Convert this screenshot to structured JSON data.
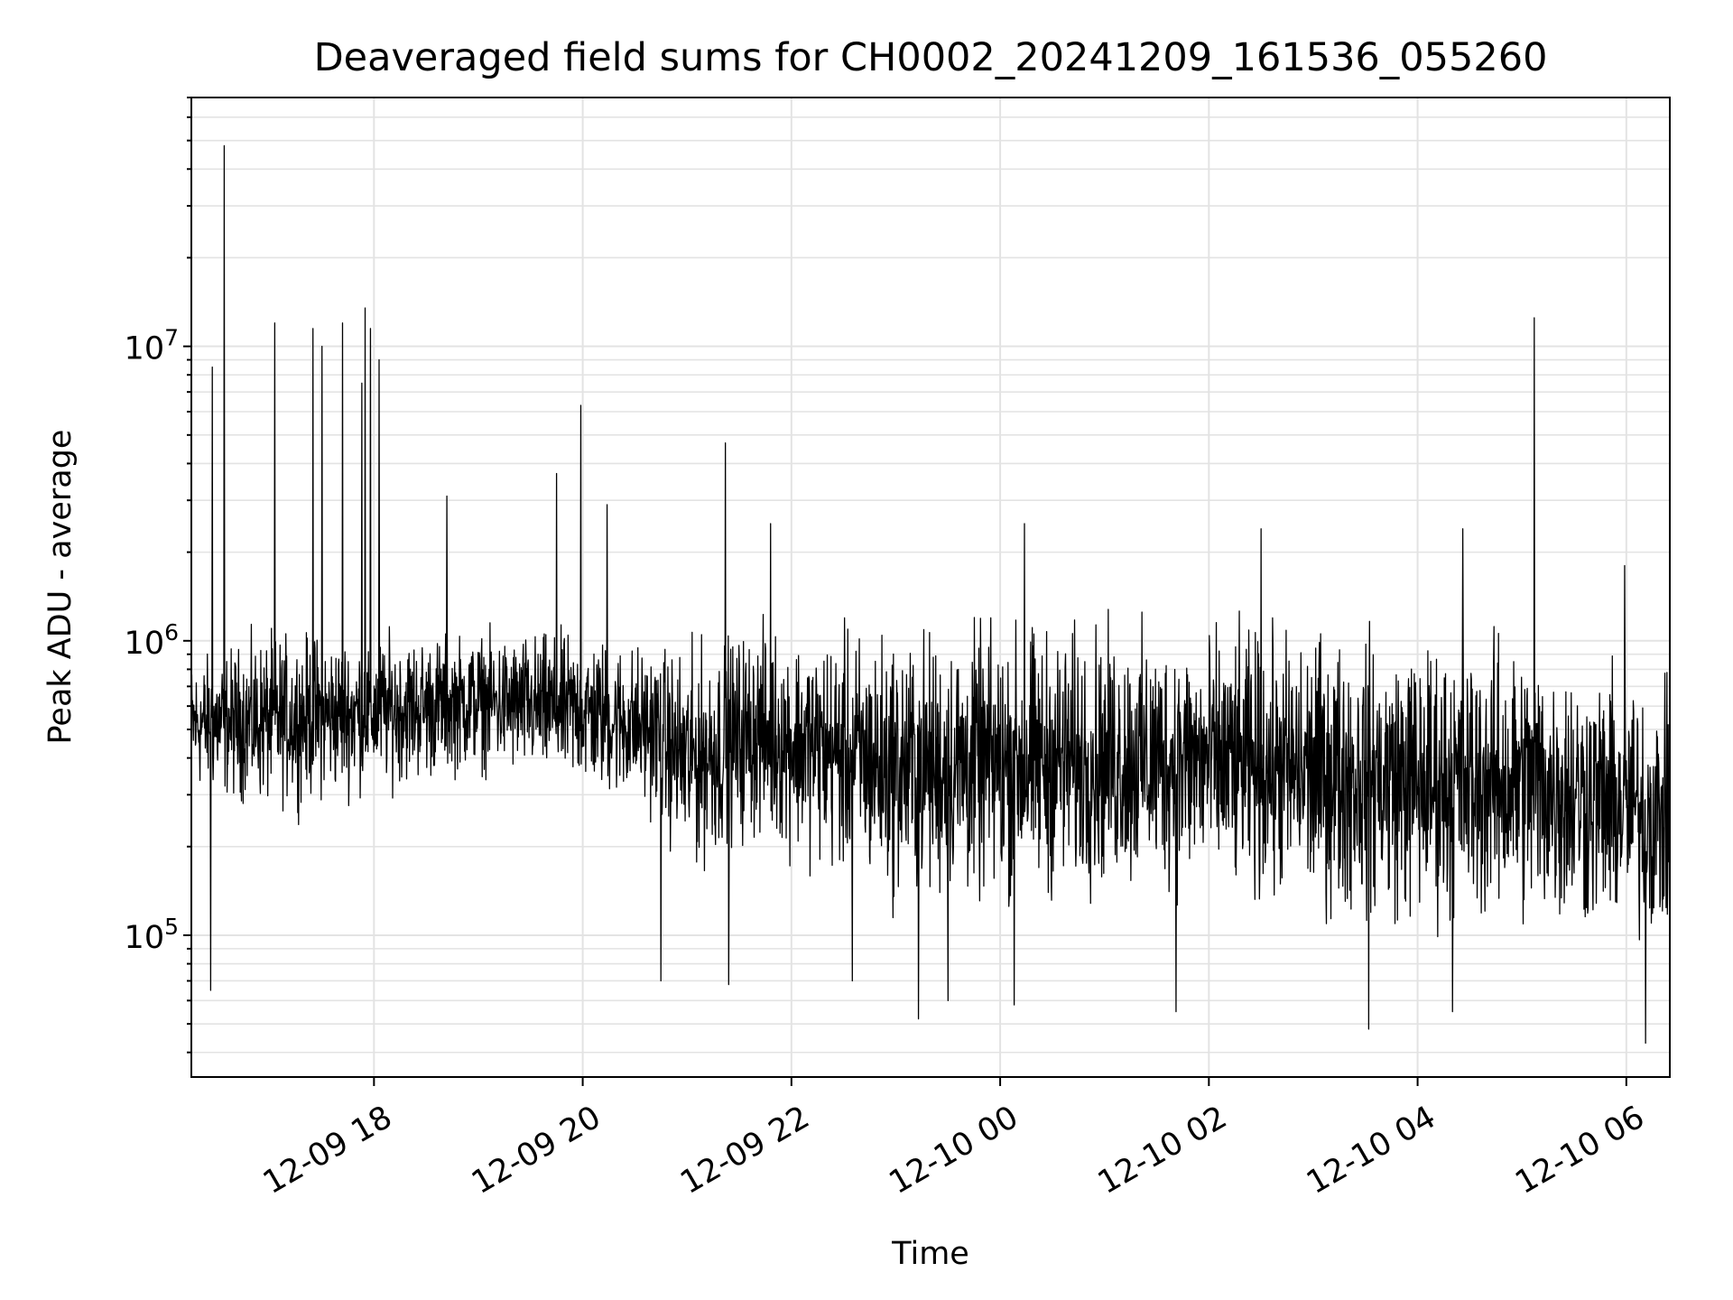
{
  "chart_data": {
    "type": "line",
    "title": "Deaveraged field sums for CH0002_20241209_161536_055260",
    "xlabel": "Time",
    "ylabel": "Peak ADU - average",
    "yscale": "log",
    "ylim": [
      33000,
      70000000
    ],
    "xlim": [
      "2024-12-09 16:15",
      "2024-12-10 06:25"
    ],
    "grid": true,
    "major_y_ticks": [
      {
        "base": "10",
        "exp": "5",
        "value": 100000
      },
      {
        "base": "10",
        "exp": "6",
        "value": 1000000
      },
      {
        "base": "10",
        "exp": "7",
        "value": 10000000
      }
    ],
    "x_ticks": [
      {
        "label": "12-09 18",
        "time": "2024-12-09 18:00"
      },
      {
        "label": "12-09 20",
        "time": "2024-12-09 20:00"
      },
      {
        "label": "12-09 22",
        "time": "2024-12-09 22:00"
      },
      {
        "label": "12-10 00",
        "time": "2024-12-10 00:00"
      },
      {
        "label": "12-10 02",
        "time": "2024-12-10 02:00"
      },
      {
        "label": "12-10 04",
        "time": "2024-12-10 04:00"
      },
      {
        "label": "12-10 06",
        "time": "2024-12-10 06:00"
      }
    ],
    "series": [
      {
        "color": "#000000",
        "band_envelope": [
          {
            "t": "2024-12-09 16:15",
            "low": 300000,
            "high": 900000
          },
          {
            "t": "2024-12-09 17:00",
            "low": 260000,
            "high": 1100000
          },
          {
            "t": "2024-12-09 18:00",
            "low": 300000,
            "high": 1100000
          },
          {
            "t": "2024-12-09 19:00",
            "low": 350000,
            "high": 1100000
          },
          {
            "t": "2024-12-09 20:00",
            "low": 300000,
            "high": 1100000
          },
          {
            "t": "2024-12-09 20:40",
            "low": 250000,
            "high": 1000000
          },
          {
            "t": "2024-12-09 21:00",
            "low": 150000,
            "high": 1000000
          },
          {
            "t": "2024-12-09 21:40",
            "low": 200000,
            "high": 1200000
          },
          {
            "t": "2024-12-09 22:00",
            "low": 180000,
            "high": 1150000
          },
          {
            "t": "2024-12-09 23:00",
            "low": 120000,
            "high": 1150000
          },
          {
            "t": "2024-12-10 00:00",
            "low": 120000,
            "high": 1200000
          },
          {
            "t": "2024-12-10 01:00",
            "low": 130000,
            "high": 1200000
          },
          {
            "t": "2024-12-10 02:00",
            "low": 130000,
            "high": 1150000
          },
          {
            "t": "2024-12-10 03:00",
            "low": 110000,
            "high": 1150000
          },
          {
            "t": "2024-12-10 04:00",
            "low": 100000,
            "high": 1100000
          },
          {
            "t": "2024-12-10 05:00",
            "low": 100000,
            "high": 1100000
          },
          {
            "t": "2024-12-10 06:25",
            "low": 90000,
            "high": 700000
          }
        ],
        "spikes_high": [
          {
            "t": "2024-12-09 16:27",
            "value": 8500000
          },
          {
            "t": "2024-12-09 16:34",
            "value": 48000000
          },
          {
            "t": "2024-12-09 17:03",
            "value": 12000000
          },
          {
            "t": "2024-12-09 17:25",
            "value": 11500000
          },
          {
            "t": "2024-12-09 17:30",
            "value": 10000000
          },
          {
            "t": "2024-12-09 17:42",
            "value": 12000000
          },
          {
            "t": "2024-12-09 17:53",
            "value": 7500000
          },
          {
            "t": "2024-12-09 17:55",
            "value": 13500000
          },
          {
            "t": "2024-12-09 17:58",
            "value": 11500000
          },
          {
            "t": "2024-12-09 18:03",
            "value": 9000000
          },
          {
            "t": "2024-12-09 18:42",
            "value": 3100000
          },
          {
            "t": "2024-12-09 19:45",
            "value": 3700000
          },
          {
            "t": "2024-12-09 19:59",
            "value": 6300000
          },
          {
            "t": "2024-12-09 20:14",
            "value": 2900000
          },
          {
            "t": "2024-12-09 21:22",
            "value": 4700000
          },
          {
            "t": "2024-12-09 21:48",
            "value": 2500000
          },
          {
            "t": "2024-12-10 00:14",
            "value": 2500000
          },
          {
            "t": "2024-12-10 02:30",
            "value": 2400000
          },
          {
            "t": "2024-12-10 04:26",
            "value": 2400000
          },
          {
            "t": "2024-12-10 05:07",
            "value": 12500000
          },
          {
            "t": "2024-12-10 05:59",
            "value": 1800000
          }
        ],
        "spikes_low": [
          {
            "t": "2024-12-09 16:26",
            "value": 65000
          },
          {
            "t": "2024-12-09 20:45",
            "value": 70000
          },
          {
            "t": "2024-12-09 21:24",
            "value": 68000
          },
          {
            "t": "2024-12-09 22:35",
            "value": 70000
          },
          {
            "t": "2024-12-09 23:13",
            "value": 52000
          },
          {
            "t": "2024-12-09 23:30",
            "value": 60000
          },
          {
            "t": "2024-12-10 00:08",
            "value": 58000
          },
          {
            "t": "2024-12-10 01:41",
            "value": 55000
          },
          {
            "t": "2024-12-10 03:32",
            "value": 48000
          },
          {
            "t": "2024-12-10 04:20",
            "value": 55000
          },
          {
            "t": "2024-12-10 06:11",
            "value": 43000
          }
        ]
      }
    ]
  }
}
